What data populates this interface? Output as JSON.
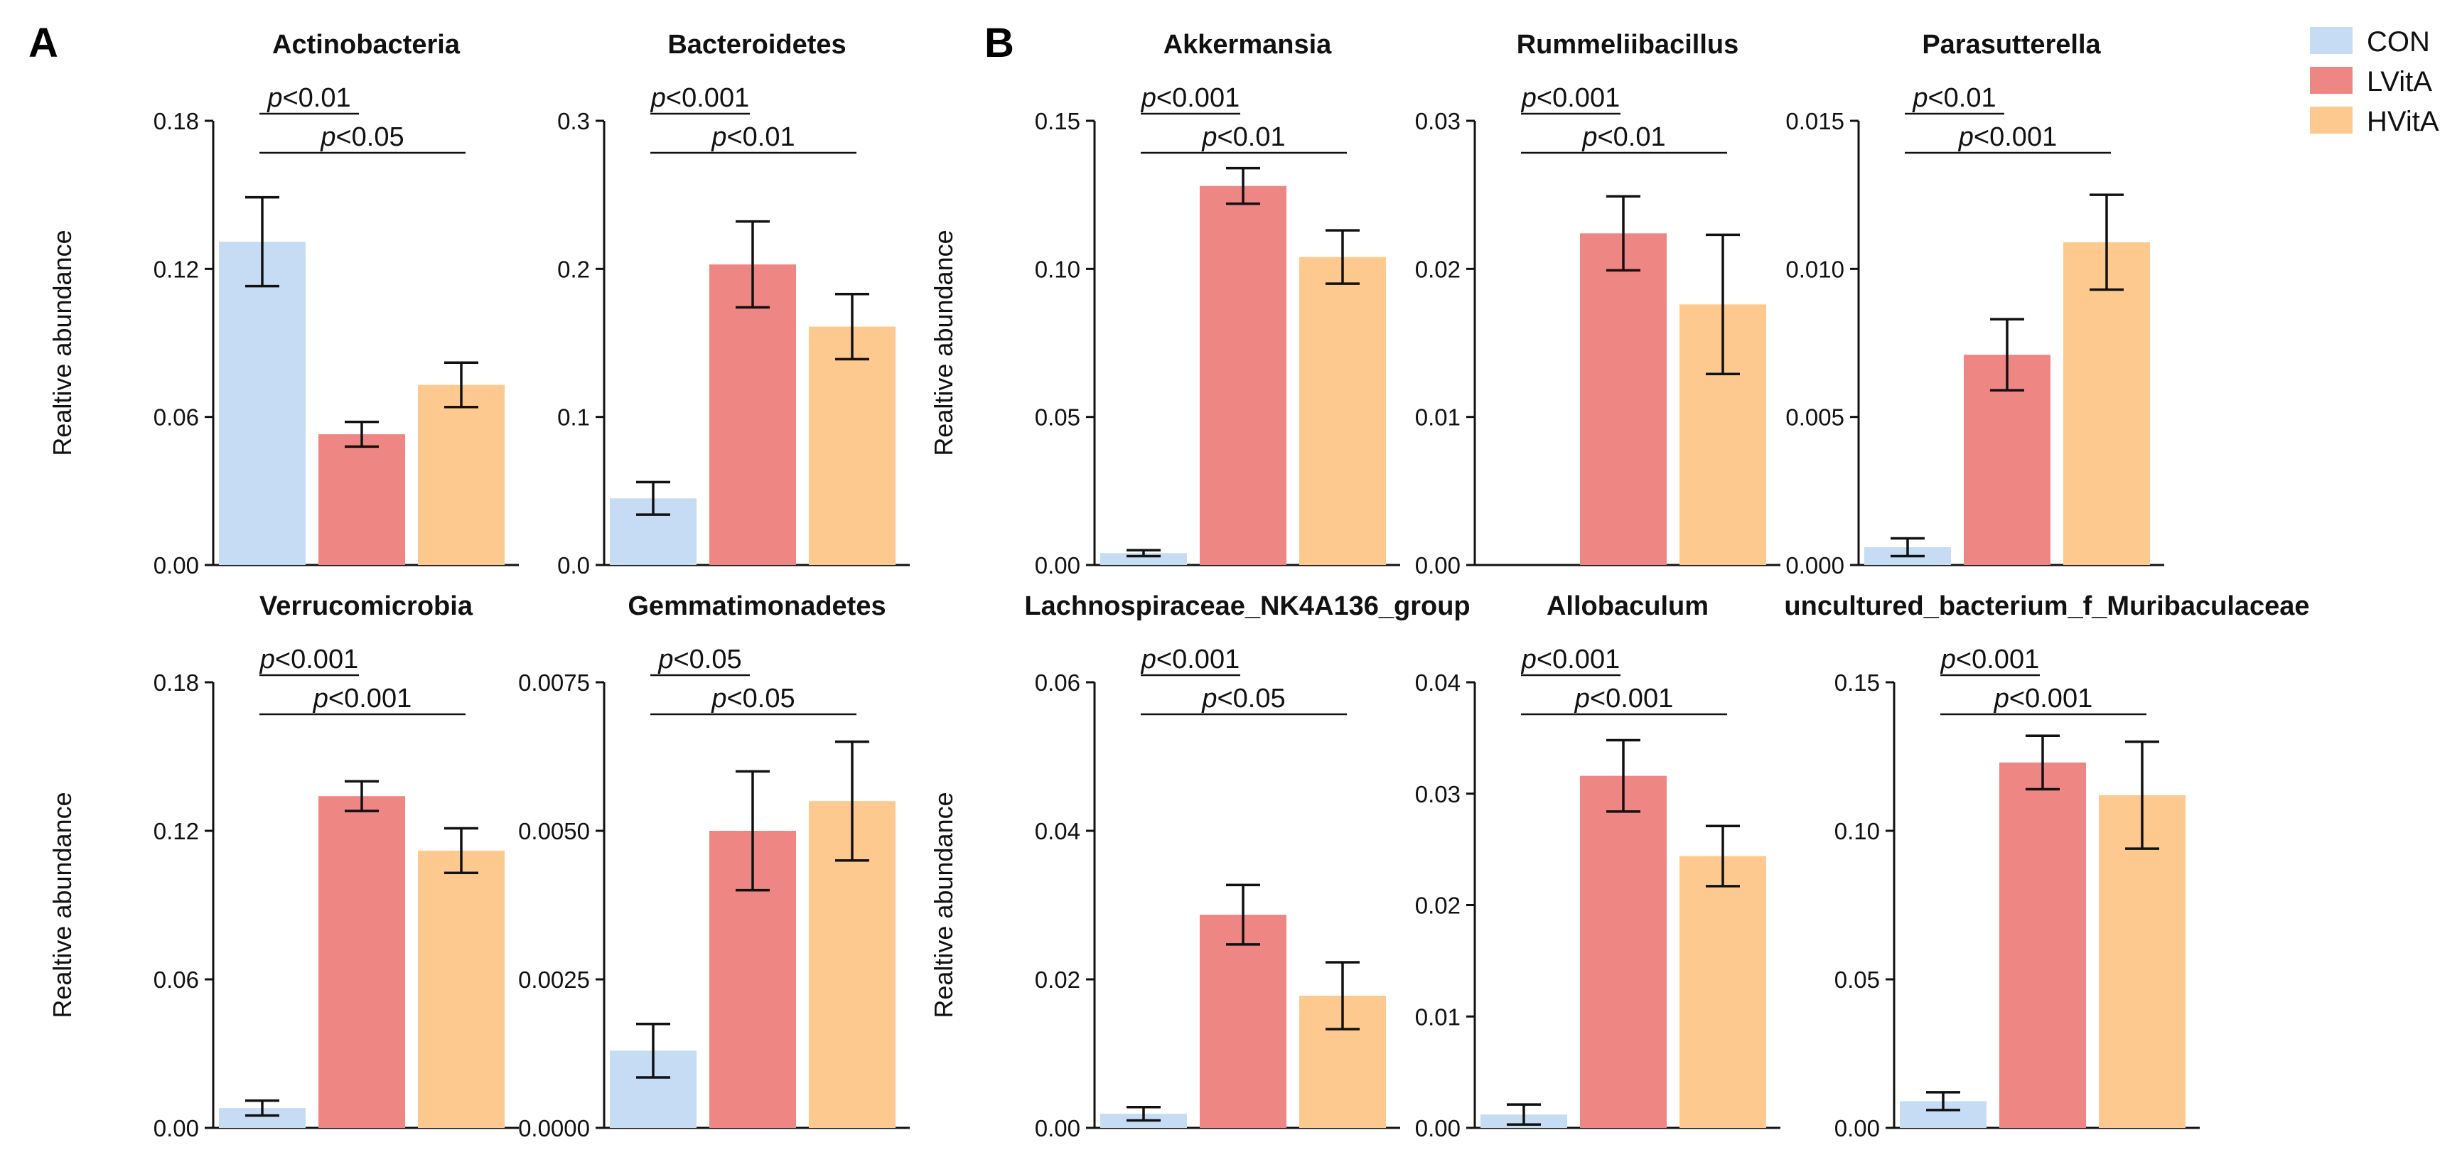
{
  "figure": {
    "panel_labels": [
      "A",
      "B"
    ],
    "legend": [
      {
        "name": "CON",
        "color": "#c6dcf5"
      },
      {
        "name": "LVitA",
        "color": "#ee8683"
      },
      {
        "name": "HVitA",
        "color": "#fdc98e"
      }
    ]
  },
  "chart_data": [
    {
      "type": "bar",
      "title": "Actinobacteria",
      "ylabel": "Realtive abundance",
      "categories": [
        "CON",
        "LVitA",
        "HVitA"
      ],
      "values": [
        0.131,
        0.053,
        0.073
      ],
      "errors": [
        0.018,
        0.005,
        0.009
      ],
      "ylim": [
        0,
        0.18
      ],
      "ytick_labels": [
        "0.00",
        "0.06",
        "0.12",
        "0.18"
      ],
      "significance": [
        {
          "pair": [
            0,
            1
          ],
          "text": "<0.01"
        },
        {
          "pair": [
            0,
            2
          ],
          "text": "<0.05"
        }
      ]
    },
    {
      "type": "bar",
      "title": "Bacteroidetes",
      "ylabel": "",
      "categories": [
        "CON",
        "LVitA",
        "HVitA"
      ],
      "values": [
        0.045,
        0.203,
        0.161
      ],
      "errors": [
        0.011,
        0.029,
        0.022
      ],
      "ylim": [
        0,
        0.3
      ],
      "ytick_labels": [
        "0.0",
        "0.1",
        "0.2",
        "0.3"
      ],
      "significance": [
        {
          "pair": [
            0,
            1
          ],
          "text": "<0.001"
        },
        {
          "pair": [
            0,
            2
          ],
          "text": "<0.01"
        }
      ]
    },
    {
      "type": "bar",
      "title": "Akkermansia",
      "ylabel": "Realtive abundance",
      "categories": [
        "CON",
        "LVitA",
        "HVitA"
      ],
      "values": [
        0.004,
        0.128,
        0.104
      ],
      "errors": [
        0.001,
        0.006,
        0.009
      ],
      "ylim": [
        0,
        0.15
      ],
      "ytick_labels": [
        "0.00",
        "0.05",
        "0.10",
        "0.15"
      ],
      "significance": [
        {
          "pair": [
            0,
            1
          ],
          "text": "<0.001"
        },
        {
          "pair": [
            0,
            2
          ],
          "text": "<0.01"
        }
      ]
    },
    {
      "type": "bar",
      "title": "Rummeliibacillus",
      "ylabel": "",
      "categories": [
        "CON",
        "LVitA",
        "HVitA"
      ],
      "values": [
        0.0,
        0.0224,
        0.0176
      ],
      "errors": [
        0.0,
        0.0025,
        0.0047
      ],
      "ylim": [
        0,
        0.03
      ],
      "ytick_labels": [
        "0.00",
        "0.01",
        "0.02",
        "0.03"
      ],
      "significance": [
        {
          "pair": [
            0,
            1
          ],
          "text": "<0.001"
        },
        {
          "pair": [
            0,
            2
          ],
          "text": "<0.01"
        }
      ]
    },
    {
      "type": "bar",
      "title": "Parasutterella",
      "ylabel": "",
      "categories": [
        "CON",
        "LVitA",
        "HVitA"
      ],
      "values": [
        0.0006,
        0.0071,
        0.0109
      ],
      "errors": [
        0.0003,
        0.0012,
        0.0016
      ],
      "ylim": [
        0,
        0.015
      ],
      "ytick_labels": [
        "0.000",
        "0.005",
        "0.010",
        "0.015"
      ],
      "significance": [
        {
          "pair": [
            0,
            1
          ],
          "text": "<0.01"
        },
        {
          "pair": [
            0,
            2
          ],
          "text": "<0.001"
        }
      ]
    },
    {
      "type": "bar",
      "title": "Verrucomicrobia",
      "ylabel": "Realtive abundance",
      "categories": [
        "CON",
        "LVitA",
        "HVitA"
      ],
      "values": [
        0.008,
        0.134,
        0.112
      ],
      "errors": [
        0.003,
        0.006,
        0.009
      ],
      "ylim": [
        0,
        0.18
      ],
      "ytick_labels": [
        "0.00",
        "0.06",
        "0.12",
        "0.18"
      ],
      "significance": [
        {
          "pair": [
            0,
            1
          ],
          "text": "<0.001"
        },
        {
          "pair": [
            0,
            2
          ],
          "text": "<0.001"
        }
      ]
    },
    {
      "type": "bar",
      "title": "Gemmatimonadetes",
      "ylabel": "",
      "categories": [
        "CON",
        "LVitA",
        "HVitA"
      ],
      "values": [
        0.0013,
        0.005,
        0.0055
      ],
      "errors": [
        0.00045,
        0.001,
        0.001
      ],
      "ylim": [
        0,
        0.0075
      ],
      "ytick_labels": [
        "0.0000",
        "0.0025",
        "0.0050",
        "0.0075"
      ],
      "significance": [
        {
          "pair": [
            0,
            1
          ],
          "text": "<0.05"
        },
        {
          "pair": [
            0,
            2
          ],
          "text": "<0.05"
        }
      ]
    },
    {
      "type": "bar",
      "title": "Lachnospiraceae_NK4A136_group",
      "ylabel": "Realtive abundance",
      "categories": [
        "CON",
        "LVitA",
        "HVitA"
      ],
      "values": [
        0.0019,
        0.0287,
        0.0178
      ],
      "errors": [
        0.0009,
        0.004,
        0.0045
      ],
      "ylim": [
        0,
        0.06
      ],
      "ytick_labels": [
        "0.00",
        "0.02",
        "0.04",
        "0.06"
      ],
      "significance": [
        {
          "pair": [
            0,
            1
          ],
          "text": "<0.001"
        },
        {
          "pair": [
            0,
            2
          ],
          "text": "<0.05"
        }
      ]
    },
    {
      "type": "bar",
      "title": "Allobaculum",
      "ylabel": "",
      "categories": [
        "CON",
        "LVitA",
        "HVitA"
      ],
      "values": [
        0.0012,
        0.0316,
        0.0244
      ],
      "errors": [
        0.0009,
        0.0032,
        0.0027
      ],
      "ylim": [
        0,
        0.04
      ],
      "ytick_labels": [
        "0.00",
        "0.01",
        "0.02",
        "0.03",
        "0.04"
      ],
      "significance": [
        {
          "pair": [
            0,
            1
          ],
          "text": "<0.001"
        },
        {
          "pair": [
            0,
            2
          ],
          "text": "<0.001"
        }
      ]
    },
    {
      "type": "bar",
      "title": "uncultured_bacterium_f_Muribaculaceae",
      "ylabel": "",
      "categories": [
        "CON",
        "LVitA",
        "HVitA"
      ],
      "values": [
        0.009,
        0.123,
        0.112
      ],
      "errors": [
        0.003,
        0.009,
        0.018
      ],
      "ylim": [
        0,
        0.15
      ],
      "ytick_labels": [
        "0.00",
        "0.05",
        "0.10",
        "0.15"
      ],
      "significance": [
        {
          "pair": [
            0,
            1
          ],
          "text": "<0.001"
        },
        {
          "pair": [
            0,
            2
          ],
          "text": "<0.001"
        }
      ]
    }
  ]
}
